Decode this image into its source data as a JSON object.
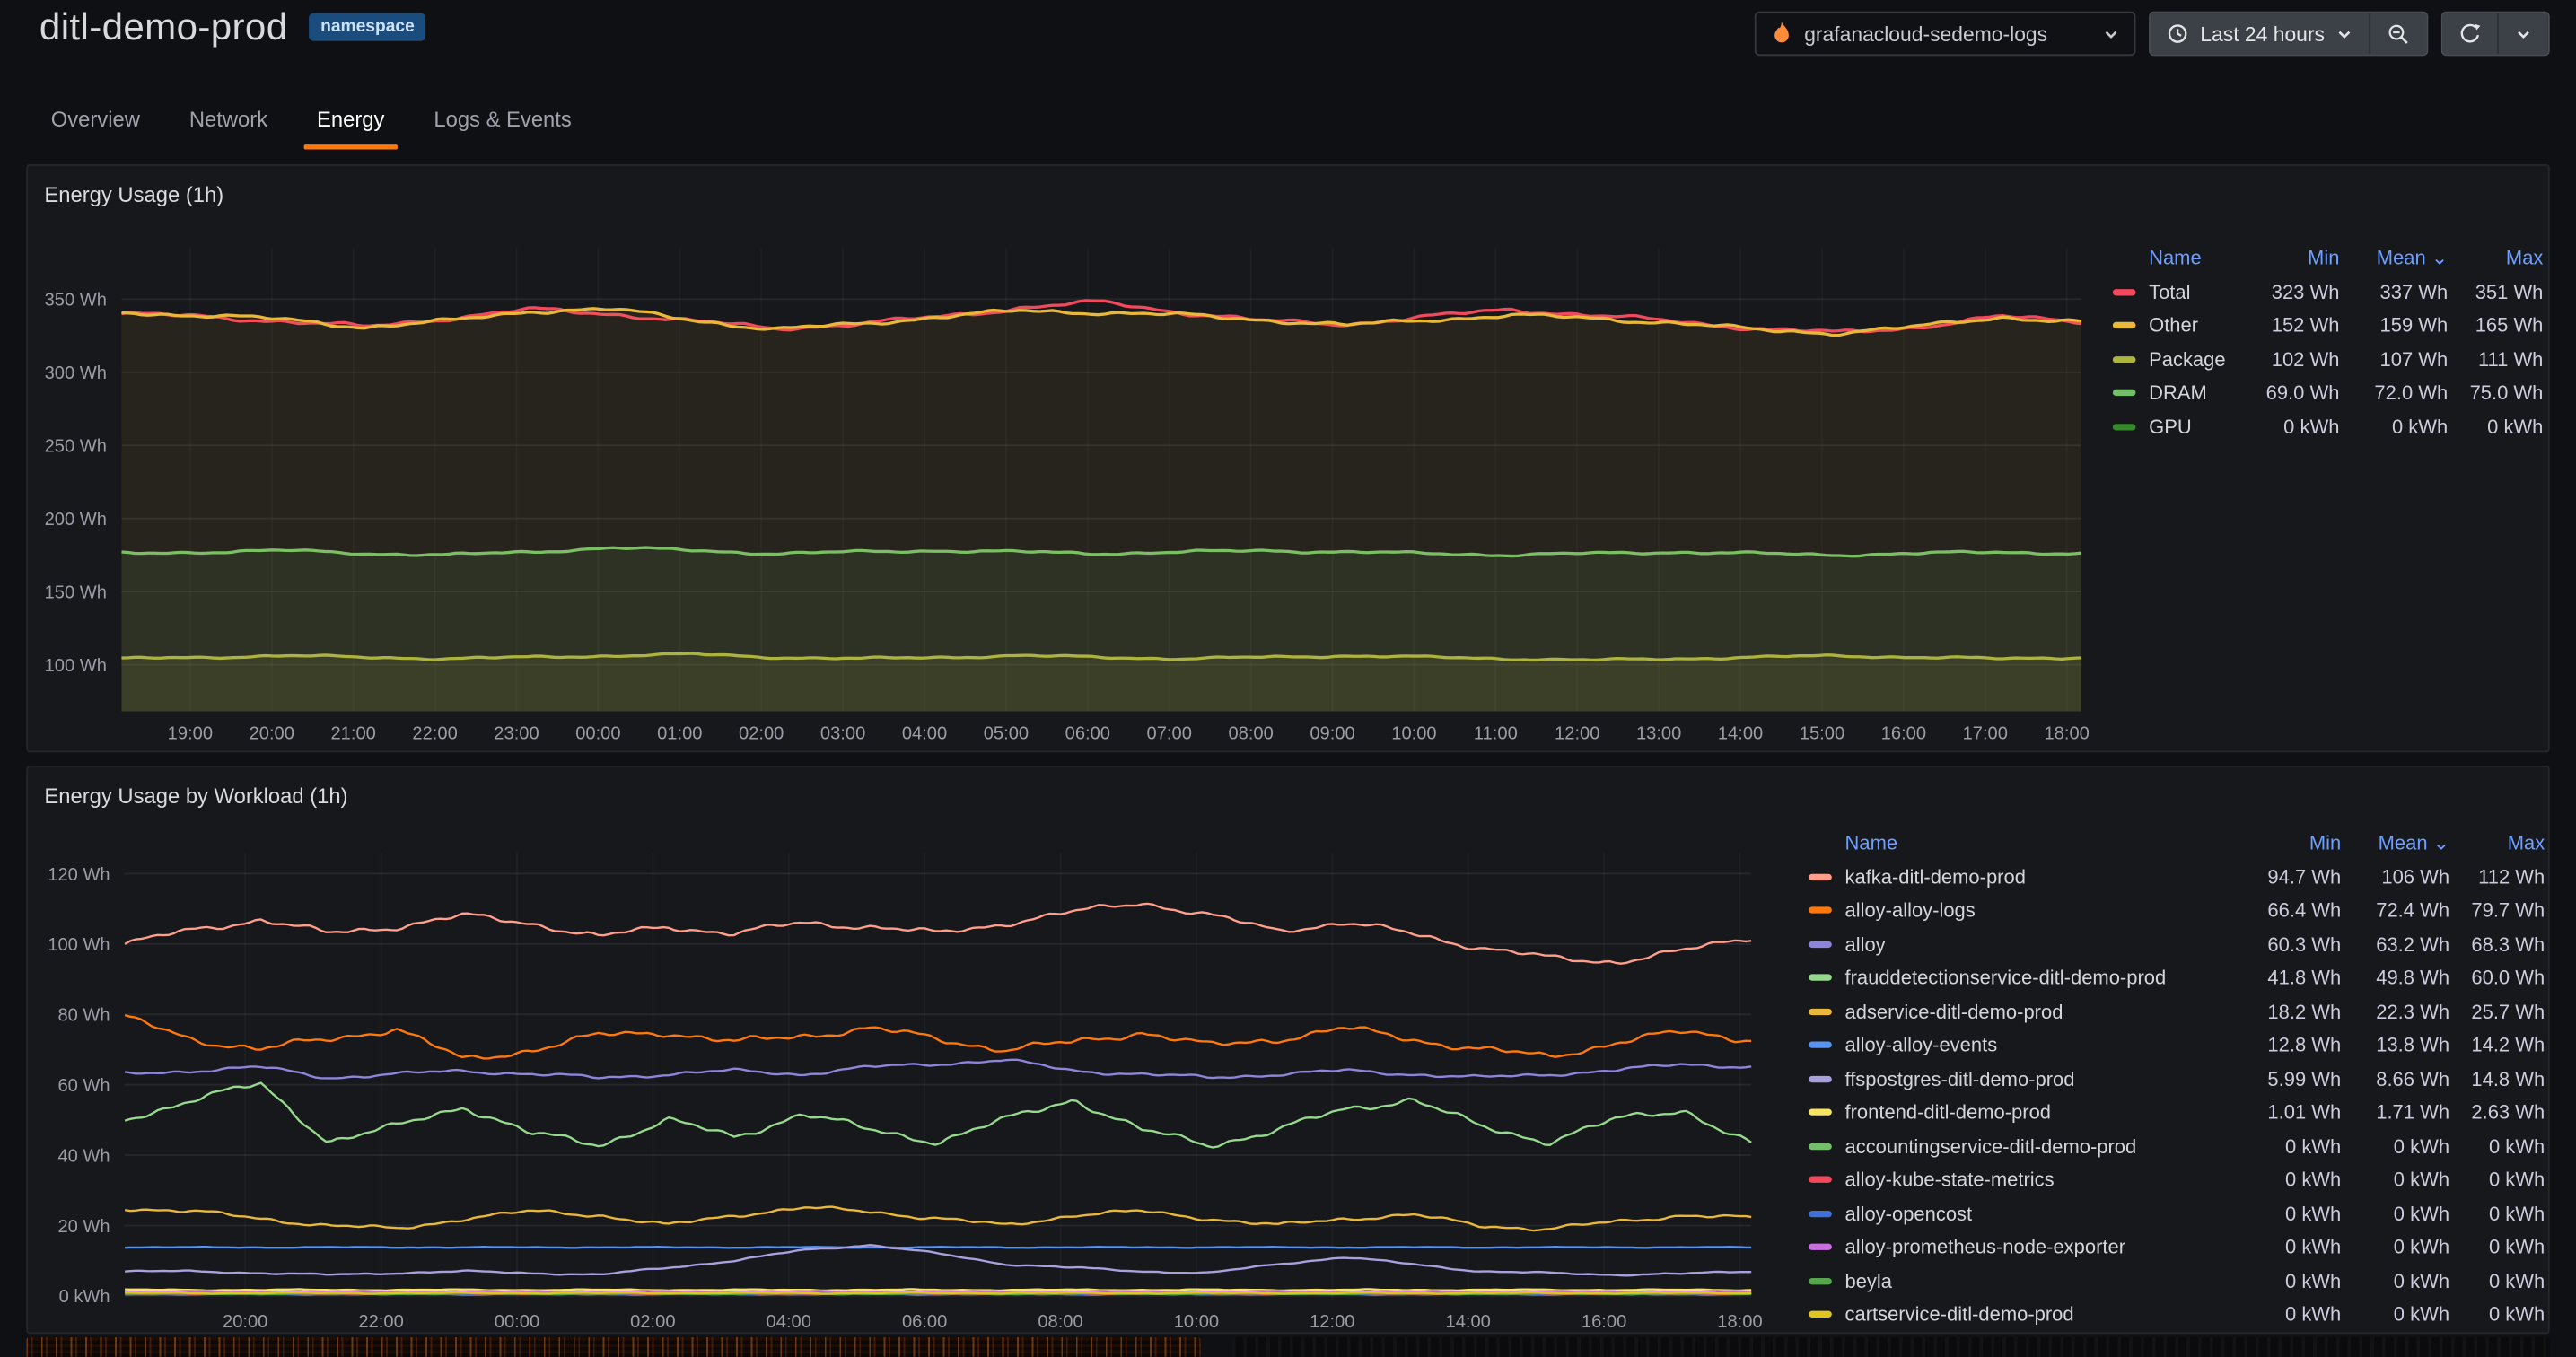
{
  "header": {
    "title": "ditl-demo-prod",
    "badge": "namespace",
    "datasource": "grafanacloud-sedemo-logs",
    "time_range": "Last 24 hours"
  },
  "icons": {
    "datasource": "grafana-flame",
    "time_picker": "clock",
    "zoom_out": "magnifier-minus",
    "refresh": "circular-arrow",
    "dropdown": "chevron-down"
  },
  "colors": {
    "accent_orange": "#FF780A",
    "link_blue": "#6E9FFF"
  },
  "tabs": [
    {
      "label": "Overview",
      "active": false
    },
    {
      "label": "Network",
      "active": false
    },
    {
      "label": "Energy",
      "active": true
    },
    {
      "label": "Logs & Events",
      "active": false
    }
  ],
  "panels": [
    {
      "title": "Energy Usage (1h)",
      "legend": {
        "headers": [
          "Name",
          "Min",
          "Mean ⌄",
          "Max"
        ],
        "rows": [
          [
            "Total",
            "#F2495C",
            "323 Wh",
            "337 Wh",
            "351 Wh"
          ],
          [
            "Other",
            "#EAB839",
            "152 Wh",
            "159 Wh",
            "165 Wh"
          ],
          [
            "Package",
            "#AEB53C",
            "102 Wh",
            "107 Wh",
            "111 Wh"
          ],
          [
            "DRAM",
            "#73BF69",
            "69.0 Wh",
            "72.0 Wh",
            "75.0 Wh"
          ],
          [
            "GPU",
            "#37872D",
            "0 kWh",
            "0 kWh",
            "0 kWh"
          ]
        ]
      }
    },
    {
      "title": "Energy Usage by Workload (1h)",
      "legend": {
        "headers": [
          "Name",
          "Min",
          "Mean ⌄",
          "Max"
        ],
        "rows": [
          [
            "kafka-ditl-demo-prod",
            "#FF9E8A",
            "94.7 Wh",
            "106 Wh",
            "112 Wh"
          ],
          [
            "alloy-alloy-logs",
            "#FF780A",
            "66.4 Wh",
            "72.4 Wh",
            "79.7 Wh"
          ],
          [
            "alloy",
            "#8D85DB",
            "60.3 Wh",
            "63.2 Wh",
            "68.3 Wh"
          ],
          [
            "frauddetectionservice-ditl-demo-prod",
            "#96D98D",
            "41.8 Wh",
            "49.8 Wh",
            "60.0 Wh"
          ],
          [
            "adservice-ditl-demo-prod",
            "#EAB839",
            "18.2 Wh",
            "22.3 Wh",
            "25.7 Wh"
          ],
          [
            "alloy-alloy-events",
            "#5794F2",
            "12.8 Wh",
            "13.8 Wh",
            "14.2 Wh"
          ],
          [
            "ffspostgres-ditl-demo-prod",
            "#A9A0DE",
            "5.99 Wh",
            "8.66 Wh",
            "14.8 Wh"
          ],
          [
            "frontend-ditl-demo-prod",
            "#F7E463",
            "1.01 Wh",
            "1.71 Wh",
            "2.63 Wh"
          ],
          [
            "accountingservice-ditl-demo-prod",
            "#73BF69",
            "0 kWh",
            "0 kWh",
            "0 kWh"
          ],
          [
            "alloy-kube-state-metrics",
            "#F2495C",
            "0 kWh",
            "0 kWh",
            "0 kWh"
          ],
          [
            "alloy-opencost",
            "#3D71D9",
            "0 kWh",
            "0 kWh",
            "0 kWh"
          ],
          [
            "alloy-prometheus-node-exporter",
            "#CA6FDE",
            "0 kWh",
            "0 kWh",
            "0 kWh"
          ],
          [
            "beyla",
            "#56A64B",
            "0 kWh",
            "0 kWh",
            "0 kWh"
          ],
          [
            "cartservice-ditl-demo-prod",
            "#E0C520",
            "0 kWh",
            "0 kWh",
            "0 kWh"
          ]
        ]
      }
    }
  ],
  "chart_data": [
    {
      "type": "line",
      "title": "Energy Usage (1h)",
      "ylabel": "Wh",
      "ylim": [
        68,
        385
      ],
      "stacked_note": "Package, DRAM and Other are drawn stacked; Total is the sum line",
      "y_ticks": [
        {
          "v": 350,
          "label": "350 Wh"
        },
        {
          "v": 300,
          "label": "300 Wh"
        },
        {
          "v": 250,
          "label": "250 Wh"
        },
        {
          "v": 200,
          "label": "200 Wh"
        },
        {
          "v": 150,
          "label": "150 Wh"
        },
        {
          "v": 100,
          "label": "100 Wh"
        }
      ],
      "x_ticks": [
        "19:00",
        "20:00",
        "21:00",
        "22:00",
        "23:00",
        "00:00",
        "01:00",
        "02:00",
        "03:00",
        "04:00",
        "05:00",
        "06:00",
        "07:00",
        "08:00",
        "09:00",
        "10:00",
        "11:00",
        "12:00",
        "13:00",
        "14:00",
        "15:00",
        "16:00",
        "17:00",
        "18:00"
      ],
      "series": [
        {
          "name": "Total",
          "color": "#F2495C",
          "width": 1.8,
          "jitter": 2,
          "values": [
            340,
            338,
            335,
            331,
            337,
            343,
            340,
            335,
            330,
            333,
            338,
            344,
            348,
            341,
            335,
            333,
            338,
            343,
            339,
            335,
            330,
            327,
            331,
            338,
            335
          ]
        },
        {
          "name": "Package",
          "color": "#AEB53C",
          "width": 1.8,
          "jitter": 1,
          "stack": true,
          "fill": 0.1,
          "values": [
            104,
            105,
            106,
            105,
            104,
            105,
            106,
            107,
            105,
            104,
            105,
            106,
            105,
            104,
            105,
            106,
            105,
            104,
            103,
            104,
            105,
            106,
            105,
            104,
            105
          ]
        },
        {
          "name": "DRAM",
          "color": "#73BF69",
          "width": 1.8,
          "jitter": 1.2,
          "stack": true,
          "fill": 0.1,
          "values": [
            72,
            72,
            72,
            71,
            71,
            72,
            74,
            71,
            71,
            73,
            73,
            71,
            71,
            73,
            73,
            71,
            71,
            71,
            73,
            73,
            71,
            69,
            71,
            73,
            71
          ]
        },
        {
          "name": "Other",
          "color": "#EAB839",
          "width": 1.8,
          "jitter": 2,
          "stack": true,
          "fill": 0.08,
          "values": [
            165,
            162,
            158,
            155,
            160,
            165,
            163,
            158,
            153,
            156,
            160,
            165,
            165,
            162,
            158,
            155,
            160,
            164,
            161,
            157,
            153,
            152,
            155,
            161,
            158
          ]
        },
        {
          "name": "GPU",
          "color": "#37872D",
          "values": []
        }
      ]
    },
    {
      "type": "line",
      "title": "Energy Usage by Workload (1h)",
      "ylabel": "Wh",
      "ylim": [
        -1,
        126
      ],
      "y_ticks": [
        {
          "v": 120,
          "label": "120 Wh"
        },
        {
          "v": 100,
          "label": "100 Wh"
        },
        {
          "v": 80,
          "label": "80 Wh"
        },
        {
          "v": 60,
          "label": "60 Wh"
        },
        {
          "v": 40,
          "label": "40 Wh"
        },
        {
          "v": 20,
          "label": "20 Wh"
        },
        {
          "v": 0,
          "label": "0 kWh"
        }
      ],
      "x_ticks": [
        "20:00",
        "22:00",
        "00:00",
        "02:00",
        "04:00",
        "06:00",
        "08:00",
        "10:00",
        "12:00",
        "14:00",
        "16:00",
        "18:00"
      ],
      "series": [
        {
          "name": "kafka-ditl-demo-prod",
          "color": "#FF9E8A",
          "jitter": 1.2,
          "values": [
            100,
            104,
            107,
            103,
            105,
            108,
            106,
            102,
            105,
            103,
            106,
            105,
            103,
            106,
            109,
            112,
            108,
            104,
            106,
            103,
            99,
            96,
            95,
            98,
            102
          ]
        },
        {
          "name": "alloy-alloy-logs",
          "color": "#FF780A",
          "jitter": 1.4,
          "values": [
            79,
            73,
            70,
            73,
            76,
            67,
            70,
            74,
            75,
            72,
            74,
            76,
            73,
            70,
            72,
            75,
            71,
            73,
            76,
            73,
            70,
            68,
            72,
            75,
            73
          ]
        },
        {
          "name": "alloy",
          "color": "#8D85DB",
          "jitter": 0.7,
          "values": [
            63,
            64,
            65,
            62,
            63,
            64,
            63,
            62,
            63,
            64,
            63,
            65,
            66,
            67,
            64,
            63,
            62,
            63,
            64,
            63,
            62,
            63,
            64,
            66,
            65
          ]
        },
        {
          "name": "frauddetectionservice-ditl-demo-prod",
          "color": "#96D98D",
          "jitter": 1.4,
          "values": [
            50,
            56,
            60,
            44,
            48,
            54,
            46,
            43,
            50,
            45,
            52,
            47,
            44,
            50,
            56,
            47,
            43,
            47,
            53,
            56,
            48,
            44,
            50,
            53,
            43
          ]
        },
        {
          "name": "adservice-ditl-demo-prod",
          "color": "#EAB839",
          "jitter": 0.8,
          "values": [
            25,
            24,
            22,
            20,
            19,
            22,
            24,
            23,
            20,
            23,
            25,
            24,
            22,
            20,
            23,
            24,
            22,
            20,
            22,
            23,
            20,
            19,
            21,
            23,
            22
          ]
        },
        {
          "name": "alloy-alloy-events",
          "color": "#5794F2",
          "jitter": 0.15,
          "values": [
            13.8
          ]
        },
        {
          "name": "ffspostgres-ditl-demo-prod",
          "color": "#A9A0DE",
          "jitter": 0.3,
          "values": [
            7,
            7,
            6.5,
            6,
            6.5,
            7,
            6.5,
            6,
            8,
            10,
            13,
            14.5,
            12,
            9,
            8,
            7,
            6.5,
            9,
            11,
            9,
            7,
            6.5,
            6,
            6.3,
            7
          ]
        },
        {
          "name": "frontend-ditl-demo-prod",
          "color": "#F7E463",
          "jitter": 0.2,
          "values": [
            1.7
          ]
        },
        {
          "name": "accountingservice-ditl-demo-prod",
          "color": "#73BF69",
          "jitter": 0.2,
          "values": [
            0.9
          ]
        },
        {
          "name": "alloy-kube-state-metrics",
          "color": "#F2495C",
          "jitter": 0.2,
          "values": [
            0.5
          ]
        },
        {
          "name": "alloy-opencost",
          "color": "#3D71D9",
          "jitter": 0.2,
          "values": [
            0.7
          ]
        },
        {
          "name": "alloy-prometheus-node-exporter",
          "color": "#CA6FDE",
          "jitter": 0.25,
          "values": [
            1.2
          ]
        },
        {
          "name": "beyla",
          "color": "#56A64B",
          "jitter": 0.2,
          "values": [
            0.6
          ]
        },
        {
          "name": "cartservice-ditl-demo-prod",
          "color": "#E0C520",
          "jitter": 0.2,
          "values": [
            0.8
          ]
        }
      ]
    }
  ]
}
